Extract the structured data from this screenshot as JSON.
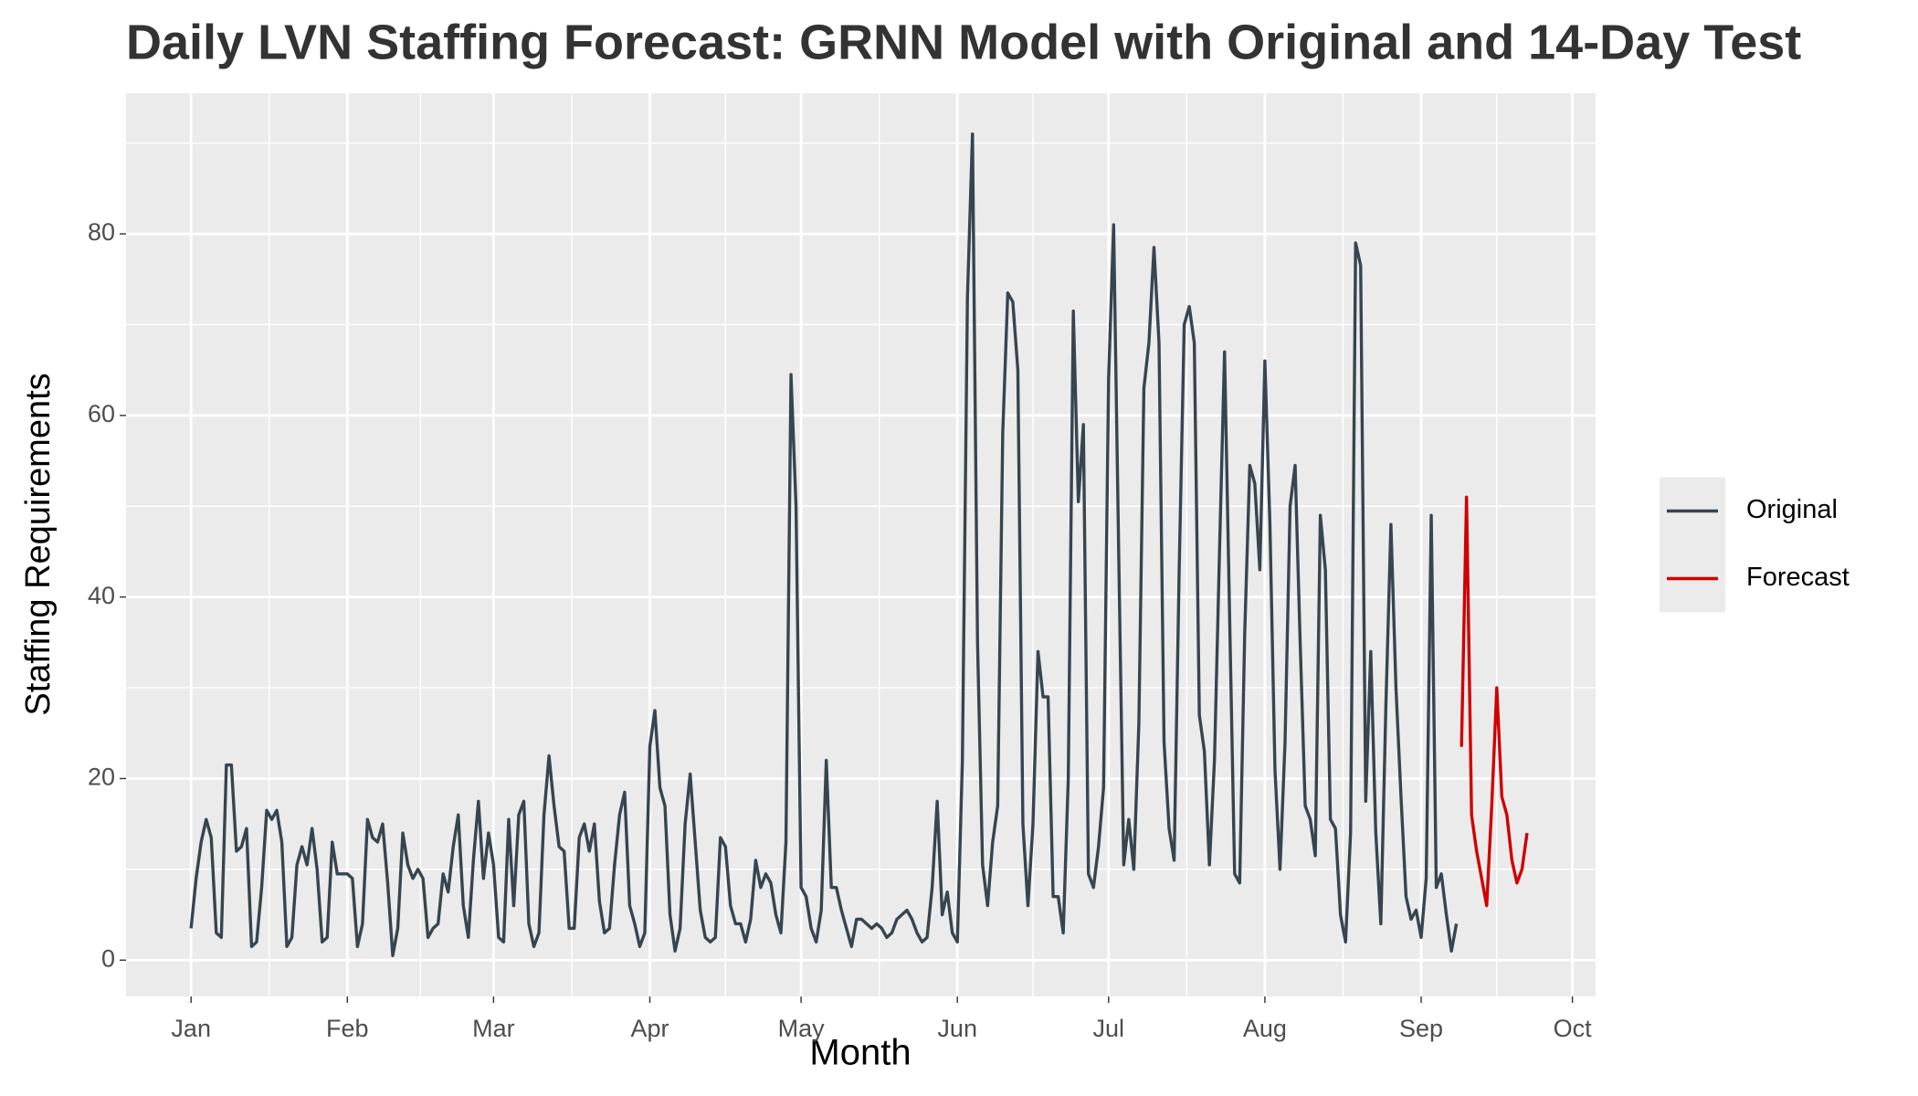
{
  "chart_data": {
    "type": "line",
    "title": "Daily LVN Staffing Forecast: GRNN Model with Original and 14-Day Test",
    "x_label": "Month",
    "y_label": "Staffing Requirements",
    "xlim": [
      -12.9,
      278.6
    ],
    "ylim": [
      -4,
      95.5
    ],
    "xticks": [
      {
        "value": 0,
        "label": "Jan"
      },
      {
        "value": 31,
        "label": "Feb"
      },
      {
        "value": 60,
        "label": "Mar"
      },
      {
        "value": 91,
        "label": "Apr"
      },
      {
        "value": 121,
        "label": "May"
      },
      {
        "value": 152,
        "label": "Jun"
      },
      {
        "value": 182,
        "label": "Jul"
      },
      {
        "value": 213,
        "label": "Aug"
      },
      {
        "value": 244,
        "label": "Sep"
      },
      {
        "value": 274,
        "label": "Oct"
      }
    ],
    "yticks": [
      0,
      20,
      40,
      60,
      80
    ],
    "grid": true,
    "legend": "right",
    "series": [
      {
        "name": "Original",
        "color": "#36454f",
        "x": [
          0,
          1,
          2,
          3,
          4,
          5,
          6,
          7,
          8,
          9,
          10,
          11,
          12,
          13,
          14,
          15,
          16,
          17,
          18,
          19,
          20,
          21,
          22,
          23,
          24,
          25,
          26,
          27,
          28,
          29,
          30,
          31,
          32,
          33,
          34,
          35,
          36,
          37,
          38,
          39,
          40,
          41,
          42,
          43,
          44,
          45,
          46,
          47,
          48,
          49,
          50,
          51,
          52,
          53,
          54,
          55,
          56,
          57,
          58,
          59,
          60,
          61,
          62,
          63,
          64,
          65,
          66,
          67,
          68,
          69,
          70,
          71,
          72,
          73,
          74,
          75,
          76,
          77,
          78,
          79,
          80,
          81,
          82,
          83,
          84,
          85,
          86,
          87,
          88,
          89,
          90,
          91,
          92,
          93,
          94,
          95,
          96,
          97,
          98,
          99,
          100,
          101,
          102,
          103,
          104,
          105,
          106,
          107,
          108,
          109,
          110,
          111,
          112,
          113,
          114,
          115,
          116,
          117,
          118,
          119,
          120,
          121,
          122,
          123,
          124,
          125,
          126,
          127,
          128,
          129,
          130,
          131,
          132,
          133,
          134,
          135,
          136,
          137,
          138,
          139,
          140,
          141,
          142,
          143,
          144,
          145,
          146,
          147,
          148,
          149,
          150,
          151,
          152,
          153,
          154,
          155,
          156,
          157,
          158,
          159,
          160,
          161,
          162,
          163,
          164,
          165,
          166,
          167,
          168,
          169,
          170,
          171,
          172,
          173,
          174,
          175,
          176,
          177,
          178,
          179,
          180,
          181,
          182,
          183,
          184,
          185,
          186,
          187,
          188,
          189,
          190,
          191,
          192,
          193,
          194,
          195,
          196,
          197,
          198,
          199,
          200,
          201,
          202,
          203,
          204,
          205,
          206,
          207,
          208,
          209,
          210,
          211,
          212,
          213,
          214,
          215,
          216,
          217,
          218,
          219,
          220,
          221,
          222,
          223,
          224,
          225,
          226,
          227,
          228,
          229,
          230,
          231,
          232,
          233,
          234,
          235,
          236,
          237,
          238,
          239,
          240,
          241,
          242,
          243,
          244,
          245,
          246,
          247,
          248,
          249,
          250,
          251
        ],
        "values": [
          3.5,
          9,
          13,
          15.5,
          13.5,
          3,
          2.5,
          21.5,
          21.5,
          12,
          12.5,
          14.5,
          1.5,
          2,
          8,
          16.5,
          15.5,
          16.5,
          13,
          1.5,
          2.5,
          10.5,
          12.5,
          10.5,
          14.5,
          10,
          2,
          2.5,
          13,
          9.5,
          9.5,
          9.5,
          9,
          1.5,
          4,
          15.5,
          13.5,
          13,
          15,
          8.5,
          0.5,
          3.5,
          14,
          10.5,
          9,
          10,
          9,
          2.5,
          3.5,
          4,
          9.5,
          7.5,
          12.5,
          16,
          6,
          2.5,
          11,
          17.5,
          9,
          14,
          10.5,
          2.5,
          2,
          15.5,
          6,
          16,
          17.5,
          4,
          1.5,
          3,
          16,
          22.5,
          17,
          12.5,
          12,
          3.5,
          3.5,
          13.5,
          15,
          12,
          15,
          6.5,
          3,
          3.5,
          10.5,
          16,
          18.5,
          6,
          4,
          1.5,
          3,
          23.5,
          27.5,
          19,
          17,
          5,
          1,
          3.5,
          15,
          20.5,
          13,
          5.5,
          2.5,
          2,
          2.5,
          13.5,
          12.5,
          6,
          4,
          4,
          2,
          4.5,
          11,
          8,
          9.5,
          8.5,
          5,
          3,
          13,
          64.5,
          50,
          8,
          7,
          3.5,
          2,
          5.5,
          22,
          8,
          8,
          5.5,
          3.5,
          1.5,
          4.5,
          4.5,
          4,
          3.5,
          4,
          3.5,
          2.5,
          3,
          4.5,
          5,
          5.5,
          4.5,
          3,
          2,
          2.5,
          8,
          17.5,
          5,
          7.5,
          3,
          2,
          22,
          73,
          91,
          35,
          10.5,
          6,
          13,
          17,
          58,
          73.5,
          72.5,
          65,
          15,
          6,
          15,
          34,
          29,
          29,
          7,
          7,
          3,
          20,
          71.5,
          50.5,
          59,
          9.5,
          8,
          12.5,
          19,
          64,
          81,
          45,
          10.5,
          15.5,
          10,
          26,
          63,
          68,
          78.5,
          68,
          24,
          14.5,
          11,
          43,
          70,
          72,
          68,
          27,
          23,
          10.5,
          22,
          45,
          67,
          38,
          9.5,
          8.5,
          36,
          54.5,
          52.5,
          43,
          66,
          48,
          21,
          10,
          24,
          50,
          54.5,
          35,
          17,
          15.5,
          11.5,
          49,
          43,
          15.5,
          14.5,
          5,
          2,
          14,
          79,
          76.5,
          17.5,
          34,
          14,
          4,
          28,
          48,
          30,
          18,
          7,
          4.5,
          5.5,
          2.5,
          9,
          49,
          8,
          9.5,
          5,
          1,
          4
        ]
      },
      {
        "name": "Forecast",
        "color": "#d00000",
        "x": [
          252,
          253,
          254,
          255,
          256,
          257,
          258,
          259,
          260,
          261,
          262,
          263,
          264,
          265
        ],
        "values": [
          23.5,
          51,
          16,
          12,
          9,
          6,
          17,
          30,
          18,
          16,
          11,
          8.5,
          10,
          14
        ]
      }
    ]
  }
}
